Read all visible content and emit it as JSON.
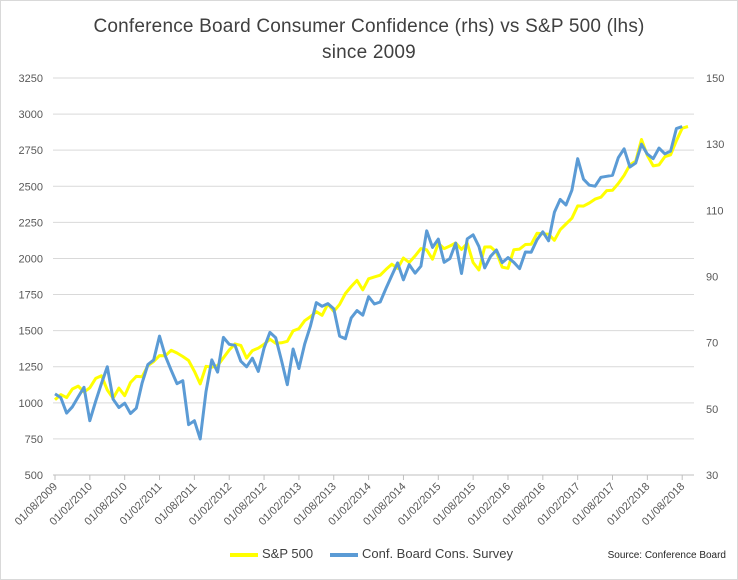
{
  "colors": {
    "sp500": "#ffff00",
    "conf_board": "#5b9bd5",
    "grid": "#d9d9d9",
    "text": "#595959"
  },
  "source_text": "Source: Conference Board",
  "chart_data": {
    "type": "line",
    "title": "Conference  Board Consumer Confidence  (rhs)  vs S&P 500 (lhs)",
    "subtitle": "since 2009",
    "y_left": {
      "lim": [
        500,
        3250
      ],
      "ticks": [
        500,
        750,
        1000,
        1250,
        1500,
        1750,
        2000,
        2250,
        2500,
        2750,
        3000,
        3250
      ]
    },
    "y_right": {
      "lim": [
        30,
        150
      ],
      "ticks": [
        30,
        50,
        70,
        90,
        110,
        130,
        150
      ]
    },
    "x_ticks": [
      "01/08/2009",
      "01/02/2010",
      "01/08/2010",
      "01/02/2011",
      "01/08/2011",
      "01/02/2012",
      "01/08/2012",
      "01/02/2013",
      "01/08/2013",
      "01/02/2014",
      "01/08/2014",
      "01/02/2015",
      "01/08/2015",
      "01/02/2016",
      "01/08/2016",
      "01/02/2017",
      "01/08/2017",
      "01/02/2018",
      "01/08/2018"
    ],
    "grid": "horizontal",
    "legend_position": "bottom",
    "series": [
      {
        "name": "S&P 500",
        "axis": "left",
        "values": [
          1021,
          1057,
          1036,
          1096,
          1116,
          1074,
          1104,
          1169,
          1187,
          1089,
          1031,
          1102,
          1049,
          1141,
          1183,
          1180,
          1257,
          1286,
          1327,
          1326,
          1364,
          1345,
          1321,
          1293,
          1218,
          1131,
          1253,
          1247,
          1258,
          1312,
          1366,
          1408,
          1398,
          1310,
          1362,
          1379,
          1406,
          1441,
          1412,
          1416,
          1426,
          1498,
          1514,
          1569,
          1597,
          1631,
          1606,
          1685,
          1633,
          1682,
          1757,
          1806,
          1848,
          1783,
          1859,
          1872,
          1884,
          1924,
          1960,
          1931,
          2003,
          1972,
          2018,
          2068,
          2059,
          1995,
          2105,
          2068,
          2086,
          2107,
          2063,
          2104,
          1972,
          1920,
          2079,
          2080,
          2044,
          1940,
          1932,
          2060,
          2065,
          2097,
          2099,
          2174,
          2171,
          2168,
          2126,
          2199,
          2239,
          2279,
          2364,
          2363,
          2384,
          2411,
          2424,
          2470,
          2472,
          2519,
          2575,
          2648,
          2674,
          2824,
          2714,
          2641,
          2648,
          2705,
          2718,
          2816,
          2902,
          2914
        ]
      },
      {
        "name": "Conf. Board Cons. Survey",
        "axis": "right",
        "values": [
          54.5,
          53.4,
          48.7,
          50.6,
          53.6,
          56.5,
          46.4,
          52.3,
          57.7,
          62.7,
          52.9,
          50.4,
          51.7,
          48.6,
          50.2,
          57.8,
          63.4,
          64.8,
          72.0,
          66.0,
          61.7,
          57.6,
          58.5,
          45.2,
          46.4,
          40.9,
          55.2,
          64.8,
          61.1,
          71.6,
          69.5,
          69.2,
          64.4,
          62.7,
          65.3,
          61.3,
          68.4,
          73.1,
          71.5,
          64.6,
          57.3,
          68.1,
          62.2,
          69.6,
          75.1,
          82.1,
          81.0,
          81.8,
          80.2,
          72.0,
          71.2,
          77.5,
          79.7,
          78.3,
          83.9,
          81.7,
          82.3,
          86.4,
          90.3,
          94.1,
          89.0,
          93.6,
          91.0,
          93.1,
          103.8,
          98.8,
          101.3,
          94.3,
          95.4,
          100.1,
          90.9,
          101.4,
          102.6,
          99.1,
          92.6,
          96.1,
          98.0,
          94.2,
          95.7,
          94.3,
          92.4,
          97.4,
          97.3,
          101.1,
          103.5,
          100.8,
          109.4,
          113.3,
          111.6,
          116.1,
          125.6,
          119.4,
          117.6,
          117.3,
          120.0,
          120.3,
          120.6,
          125.9,
          128.6,
          123.1,
          124.3,
          130.0,
          127.0,
          125.6,
          128.8,
          127.1,
          127.9,
          134.7,
          135.3
        ]
      }
    ]
  }
}
